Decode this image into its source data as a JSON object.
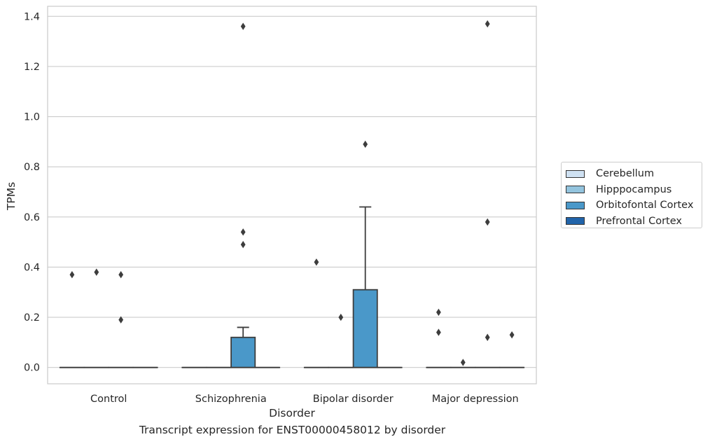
{
  "chart_data": {
    "type": "box",
    "xlabel": "Disorder",
    "ylabel": "TPMs",
    "ylim": [
      -0.065,
      1.44
    ],
    "yticks": [
      "0.0",
      "0.2",
      "0.4",
      "0.6",
      "0.8",
      "1.0",
      "1.2",
      "1.4"
    ],
    "ytick_values": [
      0.0,
      0.2,
      0.4,
      0.6,
      0.8,
      1.0,
      1.2,
      1.4
    ],
    "grid": true,
    "legend_position": "right",
    "categories": [
      "Control",
      "Schizophrenia",
      "Bipolar disorder",
      "Major depression"
    ],
    "series": [
      {
        "name": "Cerebellum",
        "color": "#cfe1f2"
      },
      {
        "name": "Hipppocampus",
        "color": "#93c4de"
      },
      {
        "name": "Orbitofontal Cortex",
        "color": "#4a98c9"
      },
      {
        "name": "Prefrontal Cortex",
        "color": "#2164aa"
      }
    ],
    "boxes": [
      {
        "category": "Control",
        "series": "Cerebellum",
        "q1": 0,
        "median": 0,
        "q3": 0,
        "whisker_low": 0,
        "whisker_high": 0,
        "outliers": [
          0.37
        ]
      },
      {
        "category": "Control",
        "series": "Hipppocampus",
        "q1": 0,
        "median": 0,
        "q3": 0,
        "whisker_low": 0,
        "whisker_high": 0,
        "outliers": [
          0.38
        ]
      },
      {
        "category": "Control",
        "series": "Orbitofontal Cortex",
        "q1": 0,
        "median": 0,
        "q3": 0,
        "whisker_low": 0,
        "whisker_high": 0,
        "outliers": [
          0.37,
          0.19
        ]
      },
      {
        "category": "Control",
        "series": "Prefrontal Cortex",
        "q1": 0,
        "median": 0,
        "q3": 0,
        "whisker_low": 0,
        "whisker_high": 0,
        "outliers": []
      },
      {
        "category": "Schizophrenia",
        "series": "Cerebellum",
        "q1": 0,
        "median": 0,
        "q3": 0,
        "whisker_low": 0,
        "whisker_high": 0,
        "outliers": []
      },
      {
        "category": "Schizophrenia",
        "series": "Hipppocampus",
        "q1": 0,
        "median": 0,
        "q3": 0,
        "whisker_low": 0,
        "whisker_high": 0,
        "outliers": []
      },
      {
        "category": "Schizophrenia",
        "series": "Orbitofontal Cortex",
        "q1": 0,
        "median": 0,
        "q3": 0.12,
        "whisker_low": 0,
        "whisker_high": 0.16,
        "outliers": [
          1.36,
          0.54,
          0.49
        ]
      },
      {
        "category": "Schizophrenia",
        "series": "Prefrontal Cortex",
        "q1": 0,
        "median": 0,
        "q3": 0,
        "whisker_low": 0,
        "whisker_high": 0,
        "outliers": []
      },
      {
        "category": "Bipolar disorder",
        "series": "Cerebellum",
        "q1": 0,
        "median": 0,
        "q3": 0,
        "whisker_low": 0,
        "whisker_high": 0,
        "outliers": [
          0.42
        ]
      },
      {
        "category": "Bipolar disorder",
        "series": "Hipppocampus",
        "q1": 0,
        "median": 0,
        "q3": 0,
        "whisker_low": 0,
        "whisker_high": 0,
        "outliers": [
          0.2
        ]
      },
      {
        "category": "Bipolar disorder",
        "series": "Orbitofontal Cortex",
        "q1": 0,
        "median": 0,
        "q3": 0.31,
        "whisker_low": 0,
        "whisker_high": 0.64,
        "outliers": [
          0.89
        ]
      },
      {
        "category": "Bipolar disorder",
        "series": "Prefrontal Cortex",
        "q1": 0,
        "median": 0,
        "q3": 0,
        "whisker_low": 0,
        "whisker_high": 0,
        "outliers": []
      },
      {
        "category": "Major depression",
        "series": "Cerebellum",
        "q1": 0,
        "median": 0,
        "q3": 0,
        "whisker_low": 0,
        "whisker_high": 0,
        "outliers": [
          0.22,
          0.14
        ]
      },
      {
        "category": "Major depression",
        "series": "Hipppocampus",
        "q1": 0,
        "median": 0,
        "q3": 0,
        "whisker_low": 0,
        "whisker_high": 0,
        "outliers": [
          0.02
        ]
      },
      {
        "category": "Major depression",
        "series": "Orbitofontal Cortex",
        "q1": 0,
        "median": 0,
        "q3": 0,
        "whisker_low": 0,
        "whisker_high": 0,
        "outliers": [
          1.37,
          0.58,
          0.12
        ]
      },
      {
        "category": "Major depression",
        "series": "Prefrontal Cortex",
        "q1": 0,
        "median": 0,
        "q3": 0,
        "whisker_low": 0,
        "whisker_high": 0,
        "outliers": [
          0.13
        ]
      }
    ]
  },
  "caption": "Transcript expression for ENST00000458012 by disorder"
}
